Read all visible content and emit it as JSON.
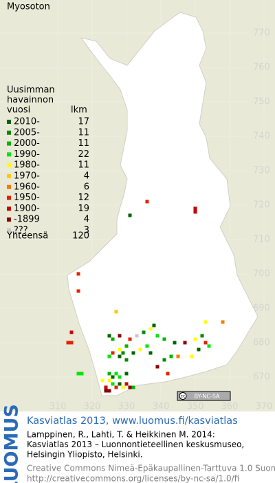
{
  "title": "Myosoton",
  "legend": {
    "header": [
      "Uusimman",
      "havainnon",
      "vuosi"
    ],
    "count_header": "lkm",
    "rows": [
      {
        "label": "2010-",
        "count": 17,
        "color": "#006400"
      },
      {
        "label": "2005-",
        "count": 11,
        "color": "#008a00"
      },
      {
        "label": "2000-",
        "count": 11,
        "color": "#00b400"
      },
      {
        "label": "1990-",
        "count": 22,
        "color": "#00e600"
      },
      {
        "label": "1980-",
        "count": 11,
        "color": "#ffff00"
      },
      {
        "label": "1970-",
        "count": 4,
        "color": "#ffc800"
      },
      {
        "label": "1960-",
        "count": 6,
        "color": "#ff7800"
      },
      {
        "label": "1950-",
        "count": 12,
        "color": "#e82000"
      },
      {
        "label": "1900-",
        "count": 19,
        "color": "#c80000"
      },
      {
        "label": "-1899",
        "count": 4,
        "color": "#8c0000"
      },
      {
        "label": "???",
        "count": 3,
        "color": "#c8c8c8"
      }
    ],
    "total_label": "Yhteensä",
    "total": 120
  },
  "map": {
    "xticks": [
      310,
      320,
      330,
      340,
      350,
      360,
      370
    ],
    "yticks": [
      770,
      760,
      750,
      740,
      730,
      720,
      710,
      700,
      690,
      680,
      670
    ],
    "points": [
      {
        "x": 336,
        "y": 721,
        "c": 7
      },
      {
        "x": 350,
        "y": 719,
        "c": 8
      },
      {
        "x": 350,
        "y": 718,
        "c": 8
      },
      {
        "x": 331,
        "y": 717,
        "c": 0
      },
      {
        "x": 316,
        "y": 700,
        "c": 7
      },
      {
        "x": 316,
        "y": 695,
        "c": 7
      },
      {
        "x": 314,
        "y": 683,
        "c": 8
      },
      {
        "x": 313,
        "y": 680,
        "c": 7
      },
      {
        "x": 314,
        "y": 680,
        "c": 7
      },
      {
        "x": 316,
        "y": 671,
        "c": 3
      },
      {
        "x": 317,
        "y": 671,
        "c": 3
      },
      {
        "x": 327,
        "y": 689,
        "c": 5
      },
      {
        "x": 358,
        "y": 686,
        "c": 6
      },
      {
        "x": 353,
        "y": 686,
        "c": 4
      },
      {
        "x": 338,
        "y": 685,
        "c": 0
      },
      {
        "x": 325,
        "y": 682,
        "c": 0
      },
      {
        "x": 326,
        "y": 681,
        "c": 2
      },
      {
        "x": 328,
        "y": 682,
        "c": 9
      },
      {
        "x": 331,
        "y": 681,
        "c": 7
      },
      {
        "x": 333,
        "y": 682,
        "c": 10
      },
      {
        "x": 335,
        "y": 683,
        "c": 1
      },
      {
        "x": 337,
        "y": 684,
        "c": 4
      },
      {
        "x": 339,
        "y": 682,
        "c": 3
      },
      {
        "x": 341,
        "y": 681,
        "c": 2
      },
      {
        "x": 344,
        "y": 680,
        "c": 0
      },
      {
        "x": 347,
        "y": 680,
        "c": 9
      },
      {
        "x": 350,
        "y": 681,
        "c": 4
      },
      {
        "x": 352,
        "y": 682,
        "c": 1
      },
      {
        "x": 353,
        "y": 680,
        "c": 7
      },
      {
        "x": 354,
        "y": 679,
        "c": 3
      },
      {
        "x": 351,
        "y": 678,
        "c": 0
      },
      {
        "x": 349,
        "y": 676,
        "c": 4
      },
      {
        "x": 345,
        "y": 676,
        "c": 6
      },
      {
        "x": 343,
        "y": 676,
        "c": 2
      },
      {
        "x": 341,
        "y": 675,
        "c": 1
      },
      {
        "x": 337,
        "y": 677,
        "c": 0
      },
      {
        "x": 336,
        "y": 679,
        "c": 3
      },
      {
        "x": 334,
        "y": 678,
        "c": 4
      },
      {
        "x": 332,
        "y": 677,
        "c": 0
      },
      {
        "x": 330,
        "y": 679,
        "c": 2
      },
      {
        "x": 329,
        "y": 677,
        "c": 1
      },
      {
        "x": 328,
        "y": 678,
        "c": 4
      },
      {
        "x": 326,
        "y": 677,
        "c": 7
      },
      {
        "x": 325,
        "y": 676,
        "c": 3
      },
      {
        "x": 328,
        "y": 676,
        "c": 0
      },
      {
        "x": 330,
        "y": 675,
        "c": 1
      },
      {
        "x": 342,
        "y": 671,
        "c": 7
      },
      {
        "x": 339,
        "y": 673,
        "c": 9
      },
      {
        "x": 325,
        "y": 671,
        "c": 2
      },
      {
        "x": 326,
        "y": 670,
        "c": 0
      },
      {
        "x": 327,
        "y": 671,
        "c": 3
      },
      {
        "x": 328,
        "y": 670,
        "c": 1
      },
      {
        "x": 325,
        "y": 669,
        "c": 4
      },
      {
        "x": 326,
        "y": 668,
        "c": 3
      },
      {
        "x": 324,
        "y": 667,
        "c": 8
      },
      {
        "x": 325,
        "y": 666,
        "c": 9
      },
      {
        "x": 327,
        "y": 667,
        "c": 7
      },
      {
        "x": 328,
        "y": 668,
        "c": 0
      },
      {
        "x": 329,
        "y": 667,
        "c": 4
      },
      {
        "x": 330,
        "y": 668,
        "c": 8
      },
      {
        "x": 331,
        "y": 667,
        "c": 9
      },
      {
        "x": 332,
        "y": 667,
        "c": 2
      },
      {
        "x": 324,
        "y": 666,
        "c": 9
      },
      {
        "x": 323,
        "y": 669,
        "c": 4
      },
      {
        "x": 328,
        "y": 670,
        "c": 3
      },
      {
        "x": 330,
        "y": 671,
        "c": 0
      }
    ]
  },
  "badge": {
    "icon": "cc",
    "text": "BY-NC-SA"
  },
  "footer": {
    "logo": "LUOMUS",
    "heading": "Kasviatlas 2013, www.luomus.fi/kasviatlas",
    "citation": [
      "Lamppinen, R., Lahti, T. & Heikkinen M. 2014:",
      "Kasviatlas 2013 – Luonnontieteellinen keskusmuseo,",
      "Helsingin Yliopisto, Helsinki."
    ],
    "license": [
      "Creative Commons Nimeä-Epäkaupallinen-Tarttuva 1.0 Suomi",
      "http://creativecommons.org/licenses/by-nc-sa/1.0/fi"
    ]
  }
}
